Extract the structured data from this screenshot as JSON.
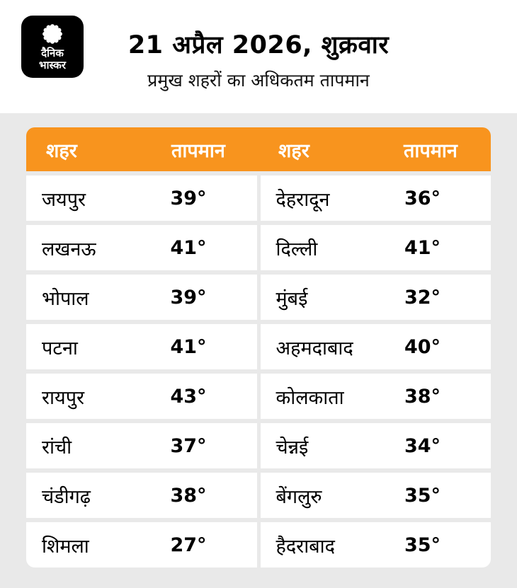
{
  "logo": {
    "line1": "दैनिक",
    "line2": "भास्कर"
  },
  "header": {
    "date_line": "21 अप्रैल 2026, शुक्रवार",
    "subtitle": "प्रमुख शहरों का अधिकतम तापमान"
  },
  "table": {
    "headers": [
      "शहर",
      "तापमान",
      "शहर",
      "तापमान"
    ],
    "rows": [
      {
        "left_city": "जयपुर",
        "left_temp": "39°",
        "right_city": "देहरादून",
        "right_temp": "36°"
      },
      {
        "left_city": "लखनऊ",
        "left_temp": "41°",
        "right_city": "दिल्ली",
        "right_temp": "41°"
      },
      {
        "left_city": "भोपाल",
        "left_temp": "39°",
        "right_city": "मुंबई",
        "right_temp": "32°"
      },
      {
        "left_city": "पटना",
        "left_temp": "41°",
        "right_city": "अहमदाबाद",
        "right_temp": "40°"
      },
      {
        "left_city": "रायपुर",
        "left_temp": "43°",
        "right_city": "कोलकाता",
        "right_temp": "38°"
      },
      {
        "left_city": "रांची",
        "left_temp": "37°",
        "right_city": "चेन्नई",
        "right_temp": "34°"
      },
      {
        "left_city": "चंडीगढ़",
        "left_temp": "38°",
        "right_city": "बेंगलुरु",
        "right_temp": "35°"
      },
      {
        "left_city": "शिमला",
        "left_temp": "27°",
        "right_city": "हैदराबाद",
        "right_temp": "35°"
      }
    ]
  },
  "colors": {
    "header_orange": "#f8941e",
    "panel_gray": "#e9e9e9",
    "logo_black": "#000000",
    "row_white": "#ffffff"
  },
  "chart_data": {
    "type": "table",
    "title": "21 अप्रैल 2026, शुक्रवार",
    "subtitle": "प्रमुख शहरों का अधिकतम तापमान",
    "columns": [
      "शहर",
      "तापमान"
    ],
    "rows": [
      [
        "जयपुर",
        39
      ],
      [
        "लखनऊ",
        41
      ],
      [
        "भोपाल",
        39
      ],
      [
        "पटना",
        41
      ],
      [
        "रायपुर",
        43
      ],
      [
        "रांची",
        37
      ],
      [
        "चंडीगढ़",
        38
      ],
      [
        "शिमला",
        27
      ],
      [
        "देहरादून",
        36
      ],
      [
        "दिल्ली",
        41
      ],
      [
        "मुंबई",
        32
      ],
      [
        "अहमदाबाद",
        40
      ],
      [
        "कोलकाता",
        38
      ],
      [
        "चेन्नई",
        34
      ],
      [
        "बेंगलुरु",
        35
      ],
      [
        "हैदराबाद",
        35
      ]
    ]
  }
}
